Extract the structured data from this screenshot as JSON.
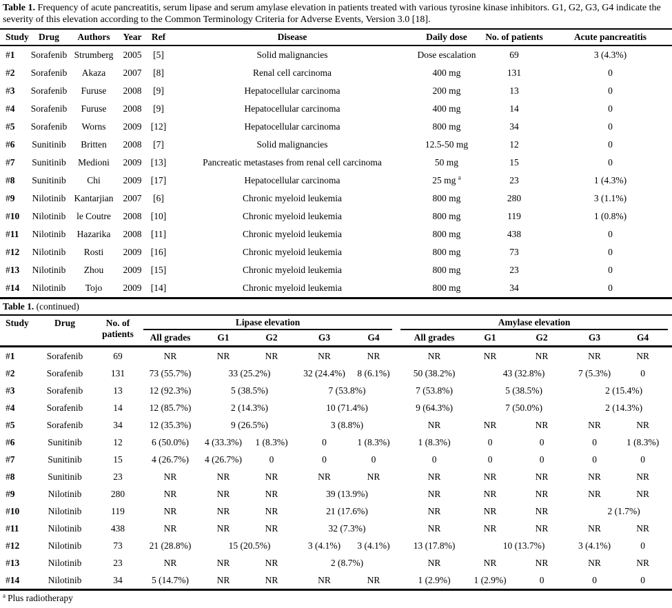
{
  "page": {
    "caption_bold": "Table 1.",
    "caption_rest": " Frequency of acute pancreatitis, serum lipase and serum amylase elevation in patients treated with various tyrosine kinase inhibitors. G1, G2, G3, G4 indicate the severity of this elevation according to the Common Terminology Criteria for Adverse Events, Version 3.0 [18].",
    "continued_bold": "Table 1.",
    "continued_rest": " (continued)",
    "footnote_marker": "a",
    "footnote_text": "Plus radiotherapy"
  },
  "table1": {
    "headers": [
      "Study",
      "Drug",
      "Authors",
      "Year",
      "Ref",
      "Disease",
      "Daily dose",
      "No. of patients",
      "Acute pancreatitis"
    ],
    "rows": [
      {
        "study": "#1",
        "drug": "Sorafenib",
        "author": "Strumberg",
        "year": "2005",
        "ref": "[5]",
        "disease": "Solid malignancies",
        "dose": "Dose escalation",
        "patients": "69",
        "pancreatitis": "3 (4.3%)"
      },
      {
        "study": "#2",
        "drug": "Sorafenib",
        "author": "Akaza",
        "year": "2007",
        "ref": "[8]",
        "disease": "Renal cell carcinoma",
        "dose": "400 mg",
        "patients": "131",
        "pancreatitis": "0"
      },
      {
        "study": "#3",
        "drug": "Sorafenib",
        "author": "Furuse",
        "year": "2008",
        "ref": "[9]",
        "disease": "Hepatocellular carcinoma",
        "dose": "200 mg",
        "patients": "13",
        "pancreatitis": "0"
      },
      {
        "study": "#4",
        "drug": "Sorafenib",
        "author": "Furuse",
        "year": "2008",
        "ref": "[9]",
        "disease": "Hepatocellular carcinoma",
        "dose": "400 mg",
        "patients": "14",
        "pancreatitis": "0"
      },
      {
        "study": "#5",
        "drug": "Sorafenib",
        "author": "Worns",
        "year": "2009",
        "ref": "[12]",
        "disease": "Hepatocellular carcinoma",
        "dose": "800 mg",
        "patients": "34",
        "pancreatitis": "0"
      },
      {
        "study": "#6",
        "drug": "Sunitinib",
        "author": "Britten",
        "year": "2008",
        "ref": "[7]",
        "disease": "Solid malignancies",
        "dose": "12.5-50 mg",
        "patients": "12",
        "pancreatitis": "0"
      },
      {
        "study": "#7",
        "drug": "Sunitinib",
        "author": "Medioni",
        "year": "2009",
        "ref": "[13]",
        "disease": "Pancreatic metastases from renal cell carcinoma",
        "dose": "50 mg",
        "patients": "15",
        "pancreatitis": "0"
      },
      {
        "study": "#8",
        "drug": "Sunitinib",
        "author": "Chi",
        "year": "2009",
        "ref": "[17]",
        "disease": "Hepatocellular carcinoma",
        "dose": "25 mg",
        "dose_sup": "a",
        "patients": "23",
        "pancreatitis": "1 (4.3%)"
      },
      {
        "study": "#9",
        "drug": "Nilotinib",
        "author": "Kantarjian",
        "year": "2007",
        "ref": "[6]",
        "disease": "Chronic myeloid leukemia",
        "dose": "800 mg",
        "patients": "280",
        "pancreatitis": "3 (1.1%)"
      },
      {
        "study": "#10",
        "drug": "Nilotinib",
        "author": "le Coutre",
        "year": "2008",
        "ref": "[10]",
        "disease": "Chronic myeloid leukemia",
        "dose": "800 mg",
        "patients": "119",
        "pancreatitis": "1 (0.8%)"
      },
      {
        "study": "#11",
        "drug": "Nilotinib",
        "author": "Hazarika",
        "year": "2008",
        "ref": "[11]",
        "disease": "Chronic myeloid leukemia",
        "dose": "800 mg",
        "patients": "438",
        "pancreatitis": "0"
      },
      {
        "study": "#12",
        "drug": "Nilotinib",
        "author": "Rosti",
        "year": "2009",
        "ref": "[16]",
        "disease": "Chronic myeloid leukemia",
        "dose": "800 mg",
        "patients": "73",
        "pancreatitis": "0"
      },
      {
        "study": "#13",
        "drug": "Nilotinib",
        "author": "Zhou",
        "year": "2009",
        "ref": "[15]",
        "disease": "Chronic myeloid leukemia",
        "dose": "800 mg",
        "patients": "23",
        "pancreatitis": "0"
      },
      {
        "study": "#14",
        "drug": "Nilotinib",
        "author": "Tojo",
        "year": "2009",
        "ref": "[14]",
        "disease": "Chronic myeloid leukemia",
        "dose": "800 mg",
        "patients": "34",
        "pancreatitis": "0"
      }
    ]
  },
  "table2": {
    "col_study": "Study",
    "col_drug": "Drug",
    "col_patients_line1": "No. of",
    "col_patients_line2": "patients",
    "group_lipase": "Lipase elevation",
    "group_amylase": "Amylase elevation",
    "sub_headers": [
      "All grades",
      "G1",
      "G2",
      "G3",
      "G4"
    ],
    "rows": [
      {
        "study": "#1",
        "drug": "Sorafenib",
        "patients": "69",
        "lipase": [
          {
            "t": "NR"
          },
          {
            "t": "NR"
          },
          {
            "t": "NR"
          },
          {
            "t": "NR"
          },
          {
            "t": "NR"
          }
        ],
        "amylase": [
          {
            "t": "NR"
          },
          {
            "t": "NR"
          },
          {
            "t": "NR"
          },
          {
            "t": "NR"
          },
          {
            "t": "NR"
          }
        ]
      },
      {
        "study": "#2",
        "drug": "Sorafenib",
        "patients": "131",
        "lipase": [
          {
            "t": "73 (55.7%)"
          },
          {
            "t": "33 (25.2%)",
            "span": 2
          },
          {
            "t": "32 (24.4%)"
          },
          {
            "t": "8 (6.1%)"
          }
        ],
        "amylase": [
          {
            "t": "50 (38.2%)"
          },
          {
            "t": "43 (32.8%)",
            "span": 2
          },
          {
            "t": "7 (5.3%)"
          },
          {
            "t": "0"
          }
        ]
      },
      {
        "study": "#3",
        "drug": "Sorafenib",
        "patients": "13",
        "lipase": [
          {
            "t": "12 (92.3%)"
          },
          {
            "t": "5 (38.5%)",
            "span": 2
          },
          {
            "t": "7 (53.8%)",
            "span": 2
          }
        ],
        "amylase": [
          {
            "t": "7 (53.8%)"
          },
          {
            "t": "5 (38.5%)",
            "span": 2
          },
          {
            "t": "2 (15.4%)",
            "span": 2
          }
        ]
      },
      {
        "study": "#4",
        "drug": "Sorafenib",
        "patients": "14",
        "lipase": [
          {
            "t": "12 (85.7%)"
          },
          {
            "t": "2 (14.3%)",
            "span": 2
          },
          {
            "t": "10 (71.4%)",
            "span": 2
          }
        ],
        "amylase": [
          {
            "t": "9 (64.3%)"
          },
          {
            "t": "7 (50.0%)",
            "span": 2
          },
          {
            "t": "2 (14.3%)",
            "span": 2
          }
        ]
      },
      {
        "study": "#5",
        "drug": "Sorafenib",
        "patients": "34",
        "lipase": [
          {
            "t": "12 (35.3%)"
          },
          {
            "t": "9 (26.5%)",
            "span": 2
          },
          {
            "t": "3 (8.8%)",
            "span": 2
          }
        ],
        "amylase": [
          {
            "t": "NR"
          },
          {
            "t": "NR"
          },
          {
            "t": "NR"
          },
          {
            "t": "NR"
          },
          {
            "t": "NR"
          }
        ]
      },
      {
        "study": "#6",
        "drug": "Sunitinib",
        "patients": "12",
        "lipase": [
          {
            "t": "6 (50.0%)"
          },
          {
            "t": "4 (33.3%)"
          },
          {
            "t": "1 (8.3%)"
          },
          {
            "t": "0"
          },
          {
            "t": "1 (8.3%)"
          }
        ],
        "amylase": [
          {
            "t": "1 (8.3%)"
          },
          {
            "t": "0"
          },
          {
            "t": "0"
          },
          {
            "t": "0"
          },
          {
            "t": "1 (8.3%)"
          }
        ]
      },
      {
        "study": "#7",
        "drug": "Sunitinib",
        "patients": "15",
        "lipase": [
          {
            "t": "4 (26.7%)"
          },
          {
            "t": "4 (26.7%)"
          },
          {
            "t": "0"
          },
          {
            "t": "0"
          },
          {
            "t": "0"
          }
        ],
        "amylase": [
          {
            "t": "0"
          },
          {
            "t": "0"
          },
          {
            "t": "0"
          },
          {
            "t": "0"
          },
          {
            "t": "0"
          }
        ]
      },
      {
        "study": "#8",
        "drug": "Sunitinib",
        "patients": "23",
        "lipase": [
          {
            "t": "NR"
          },
          {
            "t": "NR"
          },
          {
            "t": "NR"
          },
          {
            "t": "NR"
          },
          {
            "t": "NR"
          }
        ],
        "amylase": [
          {
            "t": "NR"
          },
          {
            "t": "NR"
          },
          {
            "t": "NR"
          },
          {
            "t": "NR"
          },
          {
            "t": "NR"
          }
        ]
      },
      {
        "study": "#9",
        "drug": "Nilotinib",
        "patients": "280",
        "lipase": [
          {
            "t": "NR"
          },
          {
            "t": "NR"
          },
          {
            "t": "NR"
          },
          {
            "t": "39 (13.9%)",
            "span": 2
          }
        ],
        "amylase": [
          {
            "t": "NR"
          },
          {
            "t": "NR"
          },
          {
            "t": "NR"
          },
          {
            "t": "NR"
          },
          {
            "t": "NR"
          }
        ]
      },
      {
        "study": "#10",
        "drug": "Nilotinib",
        "patients": "119",
        "lipase": [
          {
            "t": "NR"
          },
          {
            "t": "NR"
          },
          {
            "t": "NR"
          },
          {
            "t": "21 (17.6%)",
            "span": 2
          }
        ],
        "amylase": [
          {
            "t": "NR"
          },
          {
            "t": "NR"
          },
          {
            "t": "NR"
          },
          {
            "t": "2 (1.7%)",
            "span": 2
          }
        ]
      },
      {
        "study": "#11",
        "drug": "Nilotinib",
        "patients": "438",
        "lipase": [
          {
            "t": "NR"
          },
          {
            "t": "NR"
          },
          {
            "t": "NR"
          },
          {
            "t": "32 (7.3%)",
            "span": 2
          }
        ],
        "amylase": [
          {
            "t": "NR"
          },
          {
            "t": "NR"
          },
          {
            "t": "NR"
          },
          {
            "t": "NR"
          },
          {
            "t": "NR"
          }
        ]
      },
      {
        "study": "#12",
        "drug": "Nilotinib",
        "patients": "73",
        "lipase": [
          {
            "t": "21 (28.8%)"
          },
          {
            "t": "15 (20.5%)",
            "span": 2
          },
          {
            "t": "3 (4.1%)"
          },
          {
            "t": "3 (4.1%)"
          }
        ],
        "amylase": [
          {
            "t": "13 (17.8%)"
          },
          {
            "t": "10 (13.7%)",
            "span": 2
          },
          {
            "t": "3 (4.1%)"
          },
          {
            "t": "0"
          }
        ]
      },
      {
        "study": "#13",
        "drug": "Nilotinib",
        "patients": "23",
        "lipase": [
          {
            "t": "NR"
          },
          {
            "t": "NR"
          },
          {
            "t": "NR"
          },
          {
            "t": "2 (8.7%)",
            "span": 2
          }
        ],
        "amylase": [
          {
            "t": "NR"
          },
          {
            "t": "NR"
          },
          {
            "t": "NR"
          },
          {
            "t": "NR"
          },
          {
            "t": "NR"
          }
        ]
      },
      {
        "study": "#14",
        "drug": "Nilotinib",
        "patients": "34",
        "lipase": [
          {
            "t": "5 (14.7%)"
          },
          {
            "t": "NR"
          },
          {
            "t": "NR"
          },
          {
            "t": "NR"
          },
          {
            "t": "NR"
          }
        ],
        "amylase": [
          {
            "t": "1 (2.9%)"
          },
          {
            "t": "1 (2.9%)"
          },
          {
            "t": "0"
          },
          {
            "t": "0"
          },
          {
            "t": "0"
          }
        ]
      }
    ]
  }
}
